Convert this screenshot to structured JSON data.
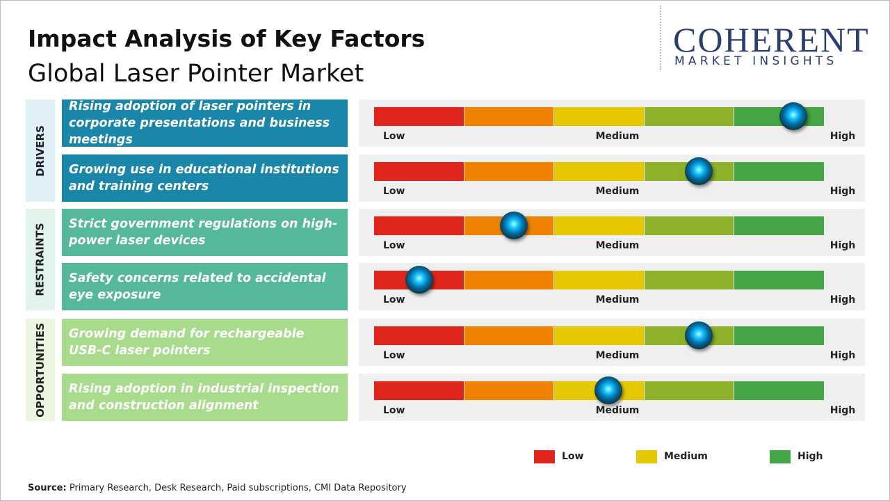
{
  "header": {
    "title": "Impact Analysis of Key Factors",
    "subtitle": "Global Laser Pointer Market"
  },
  "logo": {
    "name": "COHERENT",
    "tagline": "MARKET INSIGHTS"
  },
  "scale_labels": [
    "Low",
    "Medium",
    "High"
  ],
  "impact_range": [
    0,
    5
  ],
  "segment_colors": [
    "#e0261c",
    "#ef8200",
    "#e6c800",
    "#8db22a",
    "#44a644"
  ],
  "groups": [
    {
      "label": "DRIVERS",
      "color": "#1a86aa",
      "side_color": "#dff0f8",
      "factors": [
        {
          "text": "Rising adoption of laser pointers in corporate presentations and business meetings",
          "impact": 4.65
        },
        {
          "text": "Growing use in educational institutions and training centers",
          "impact": 3.6
        }
      ]
    },
    {
      "label": "RESTRAINTS",
      "color": "#55b89a",
      "side_color": "#e1f3ec",
      "factors": [
        {
          "text": "Strict government regulations on high-power laser devices",
          "impact": 1.55
        },
        {
          "text": "Safety concerns related to accidental eye exposure",
          "impact": 0.5
        }
      ]
    },
    {
      "label": "OPPORTUNITIES",
      "color": "#a8dc8c",
      "side_color": "#eaf6e0",
      "factors": [
        {
          "text": "Growing demand for rechargeable USB-C laser pointers",
          "impact": 3.6
        },
        {
          "text": "Rising adoption in industrial inspection and construction alignment",
          "impact": 2.6
        }
      ]
    }
  ],
  "legend": [
    {
      "label": "Low",
      "color": "#e0261c"
    },
    {
      "label": "Medium",
      "color": "#e6c800"
    },
    {
      "label": "High",
      "color": "#44a644"
    }
  ],
  "source": {
    "label": "Source:",
    "text": "Primary Research, Desk Research, Paid subscriptions, CMI Data Repository"
  }
}
